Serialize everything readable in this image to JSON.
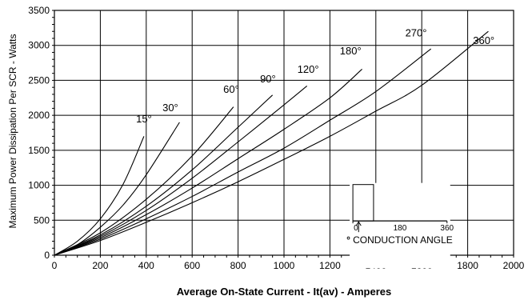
{
  "chart_data": {
    "type": "line",
    "title": "",
    "xlabel": "Average On-State Current - It(av) - Amperes",
    "ylabel": "Maximum Power Dissipation Per SCR - Watts",
    "xlim": [
      0,
      2000
    ],
    "ylim": [
      0,
      3500
    ],
    "grid": true,
    "legend": "none",
    "x_ticks": [
      "0",
      "200",
      "400",
      "600",
      "800",
      "1000",
      "1200",
      "1400",
      "1600",
      "1800",
      "2000"
    ],
    "y_ticks": [
      "0",
      "500",
      "1000",
      "1500",
      "2000",
      "2500",
      "3000",
      "3500"
    ],
    "series": [
      {
        "name": "15°",
        "x": [
          0,
          100,
          200,
          300,
          390
        ],
        "y": [
          0,
          200,
          520,
          1020,
          1700
        ]
      },
      {
        "name": "30°",
        "x": [
          0,
          100,
          200,
          300,
          400,
          545
        ],
        "y": [
          0,
          150,
          400,
          720,
          1150,
          1900
        ]
      },
      {
        "name": "60°",
        "x": [
          0,
          200,
          400,
          600,
          780
        ],
        "y": [
          0,
          320,
          800,
          1420,
          2120
        ]
      },
      {
        "name": "90°",
        "x": [
          0,
          200,
          400,
          600,
          800,
          950
        ],
        "y": [
          0,
          290,
          700,
          1220,
          1830,
          2290
        ]
      },
      {
        "name": "120°",
        "x": [
          0,
          200,
          400,
          600,
          800,
          1000,
          1100
        ],
        "y": [
          0,
          270,
          640,
          1100,
          1620,
          2150,
          2420
        ]
      },
      {
        "name": "180°",
        "x": [
          0,
          200,
          400,
          600,
          800,
          1000,
          1200,
          1340
        ],
        "y": [
          0,
          250,
          580,
          960,
          1380,
          1800,
          2250,
          2660
        ]
      },
      {
        "name": "270°",
        "x": [
          0,
          200,
          400,
          600,
          800,
          1000,
          1200,
          1400,
          1640
        ],
        "y": [
          0,
          230,
          520,
          840,
          1190,
          1530,
          1930,
          2340,
          2950
        ]
      },
      {
        "name": "360°",
        "x": [
          0,
          200,
          400,
          600,
          800,
          1000,
          1200,
          1400,
          1600,
          1890
        ],
        "y": [
          0,
          210,
          470,
          750,
          1050,
          1370,
          1700,
          2060,
          2430,
          3200
        ]
      }
    ],
    "label_positions": [
      {
        "text": "15°",
        "x": 390,
        "y": 1900
      },
      {
        "text": "30°",
        "x": 505,
        "y": 2060
      },
      {
        "text": "60°",
        "x": 770,
        "y": 2320
      },
      {
        "text": "90°",
        "x": 930,
        "y": 2470
      },
      {
        "text": "120°",
        "x": 1105,
        "y": 2610
      },
      {
        "text": "180°",
        "x": 1290,
        "y": 2870
      },
      {
        "text": "270°",
        "x": 1575,
        "y": 3130
      },
      {
        "text": "360°",
        "x": 1870,
        "y": 3020
      }
    ],
    "inset": {
      "ticks": [
        "0",
        "180",
        "360"
      ],
      "caption": "CONDUCTION ANGLE",
      "caption_symbol": "°"
    }
  }
}
